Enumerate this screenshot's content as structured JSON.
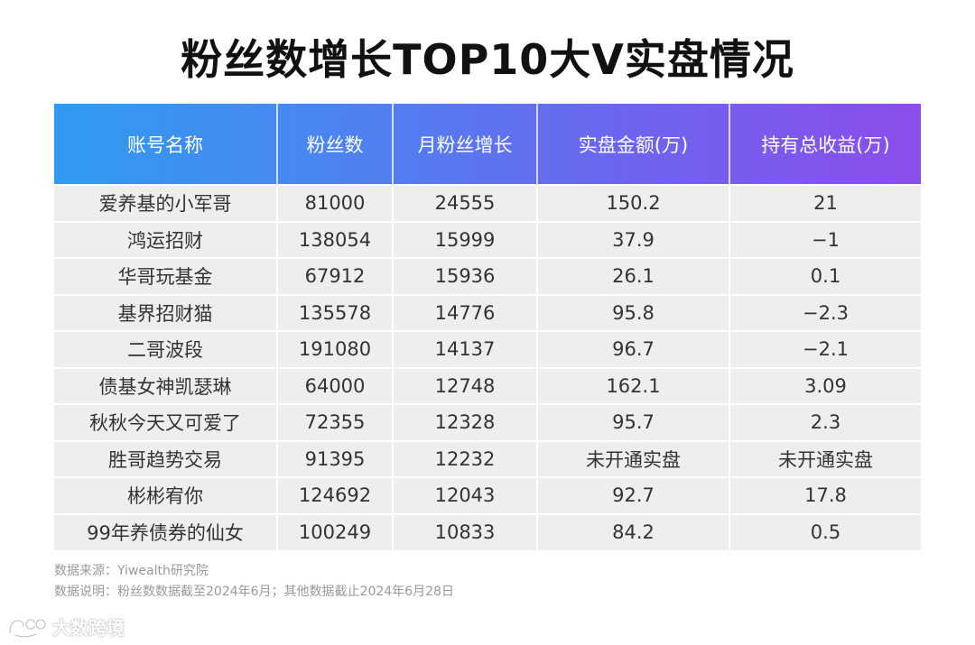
{
  "title": "粉丝数增长TOP10大V实盘情况",
  "chart_data": {
    "type": "table",
    "columns": [
      "账号名称",
      "粉丝数",
      "月粉丝增长",
      "实盘金额(万)",
      "持有总收益(万)"
    ],
    "rows": [
      [
        "爱养基的小军哥",
        "81000",
        "24555",
        "150.2",
        "21"
      ],
      [
        "鸿运招财",
        "138054",
        "15999",
        "37.9",
        "−1"
      ],
      [
        "华哥玩基金",
        "67912",
        "15936",
        "26.1",
        "0.1"
      ],
      [
        "基界招财猫",
        "135578",
        "14776",
        "95.8",
        "−2.3"
      ],
      [
        "二哥波段",
        "191080",
        "14137",
        "96.7",
        "−2.1"
      ],
      [
        "债基女神凯瑟琳",
        "64000",
        "12748",
        "162.1",
        "3.09"
      ],
      [
        "秋秋今天又可爱了",
        "72355",
        "12328",
        "95.7",
        "2.3"
      ],
      [
        "胜哥趋势交易",
        "91395",
        "12232",
        "未开通实盘",
        "未开通实盘"
      ],
      [
        "彬彬宥你",
        "124692",
        "12043",
        "92.7",
        "17.8"
      ],
      [
        "99年养债券的仙女",
        "100249",
        "10833",
        "84.2",
        "0.5"
      ]
    ]
  },
  "notes": {
    "source": "数据来源：Yiwealth研究院",
    "explanation": "数据说明：粉丝数数据截至2024年6月；其他数据截止2024年6月28日"
  },
  "watermark": {
    "text": "大数跨境",
    "icon": "brand-logo-icon"
  },
  "colors": {
    "header_gradient": [
      "#2f9bf0",
      "#4a86f0",
      "#6c66ee",
      "#8b4dec"
    ],
    "row_bg": "#eeeeee",
    "text": "#333333",
    "notes": "#999999"
  }
}
